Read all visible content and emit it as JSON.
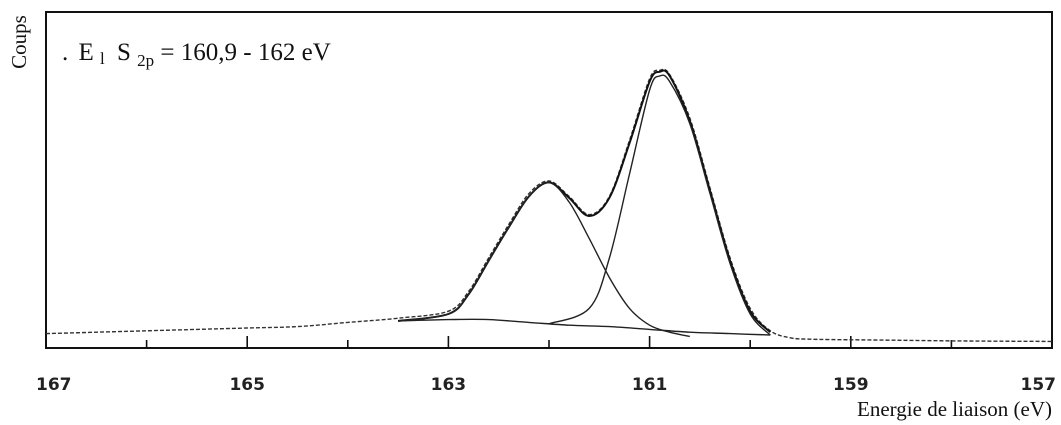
{
  "chart_data": {
    "type": "line",
    "title": "",
    "xlabel": "Energie de liaison (eV)",
    "ylabel": "Coups",
    "xlim": [
      167,
      157
    ],
    "ylim": [
      0,
      1
    ],
    "x_reversed": true,
    "x_ticks": [
      167,
      165,
      163,
      161,
      159,
      157
    ],
    "y_ticks": [],
    "grid": false,
    "annotation": {
      "prefix": ".",
      "E": "E",
      "E_sub": "l",
      "S": "S",
      "S_sub": "2p",
      "text": " = 160,9 - 162 eV"
    },
    "series": [
      {
        "role": "experimental",
        "x": [
          167.0,
          166.5,
          166.0,
          165.5,
          165.0,
          164.5,
          164.0,
          163.5,
          163.0,
          162.8,
          162.6,
          162.4,
          162.2,
          162.0,
          161.8,
          161.6,
          161.4,
          161.2,
          161.0,
          160.9,
          160.8,
          160.6,
          160.4,
          160.2,
          160.0,
          159.8,
          159.6,
          159.4,
          159.0,
          158.5,
          158.0,
          157.5,
          157.0
        ],
        "y": [
          0.03,
          0.035,
          0.04,
          0.045,
          0.05,
          0.055,
          0.07,
          0.085,
          0.11,
          0.18,
          0.3,
          0.42,
          0.53,
          0.575,
          0.52,
          0.455,
          0.52,
          0.72,
          0.94,
          0.97,
          0.955,
          0.8,
          0.55,
          0.3,
          0.12,
          0.04,
          0.015,
          0.01,
          0.008,
          0.006,
          0.004,
          0.003,
          0.002
        ]
      },
      {
        "role": "fit-envelope",
        "x": [
          163.5,
          163.0,
          162.8,
          162.6,
          162.4,
          162.2,
          162.0,
          161.8,
          161.6,
          161.4,
          161.2,
          161.0,
          160.9,
          160.8,
          160.6,
          160.4,
          160.2,
          160.0,
          159.8
        ],
        "y": [
          0.075,
          0.1,
          0.17,
          0.29,
          0.41,
          0.52,
          0.57,
          0.515,
          0.45,
          0.515,
          0.71,
          0.93,
          0.965,
          0.95,
          0.79,
          0.54,
          0.29,
          0.11,
          0.035
        ]
      },
      {
        "role": "component-1",
        "x": [
          163.5,
          163.0,
          162.8,
          162.6,
          162.4,
          162.2,
          162.0,
          161.8,
          161.6,
          161.4,
          161.2,
          161.0,
          160.8,
          160.6
        ],
        "y": [
          0.075,
          0.1,
          0.17,
          0.29,
          0.41,
          0.52,
          0.57,
          0.5,
          0.37,
          0.23,
          0.12,
          0.06,
          0.035,
          0.02
        ]
      },
      {
        "role": "component-2",
        "x": [
          162.0,
          161.6,
          161.4,
          161.2,
          161.0,
          160.9,
          160.8,
          160.6,
          160.4,
          160.2,
          160.0,
          159.8
        ],
        "y": [
          0.065,
          0.12,
          0.3,
          0.6,
          0.9,
          0.95,
          0.93,
          0.78,
          0.53,
          0.28,
          0.1,
          0.025
        ]
      },
      {
        "role": "background",
        "x": [
          163.5,
          163.0,
          162.6,
          162.2,
          161.8,
          161.4,
          161.0,
          160.6,
          160.2,
          159.8
        ],
        "y": [
          0.075,
          0.08,
          0.08,
          0.07,
          0.06,
          0.055,
          0.045,
          0.035,
          0.03,
          0.025
        ]
      }
    ]
  }
}
